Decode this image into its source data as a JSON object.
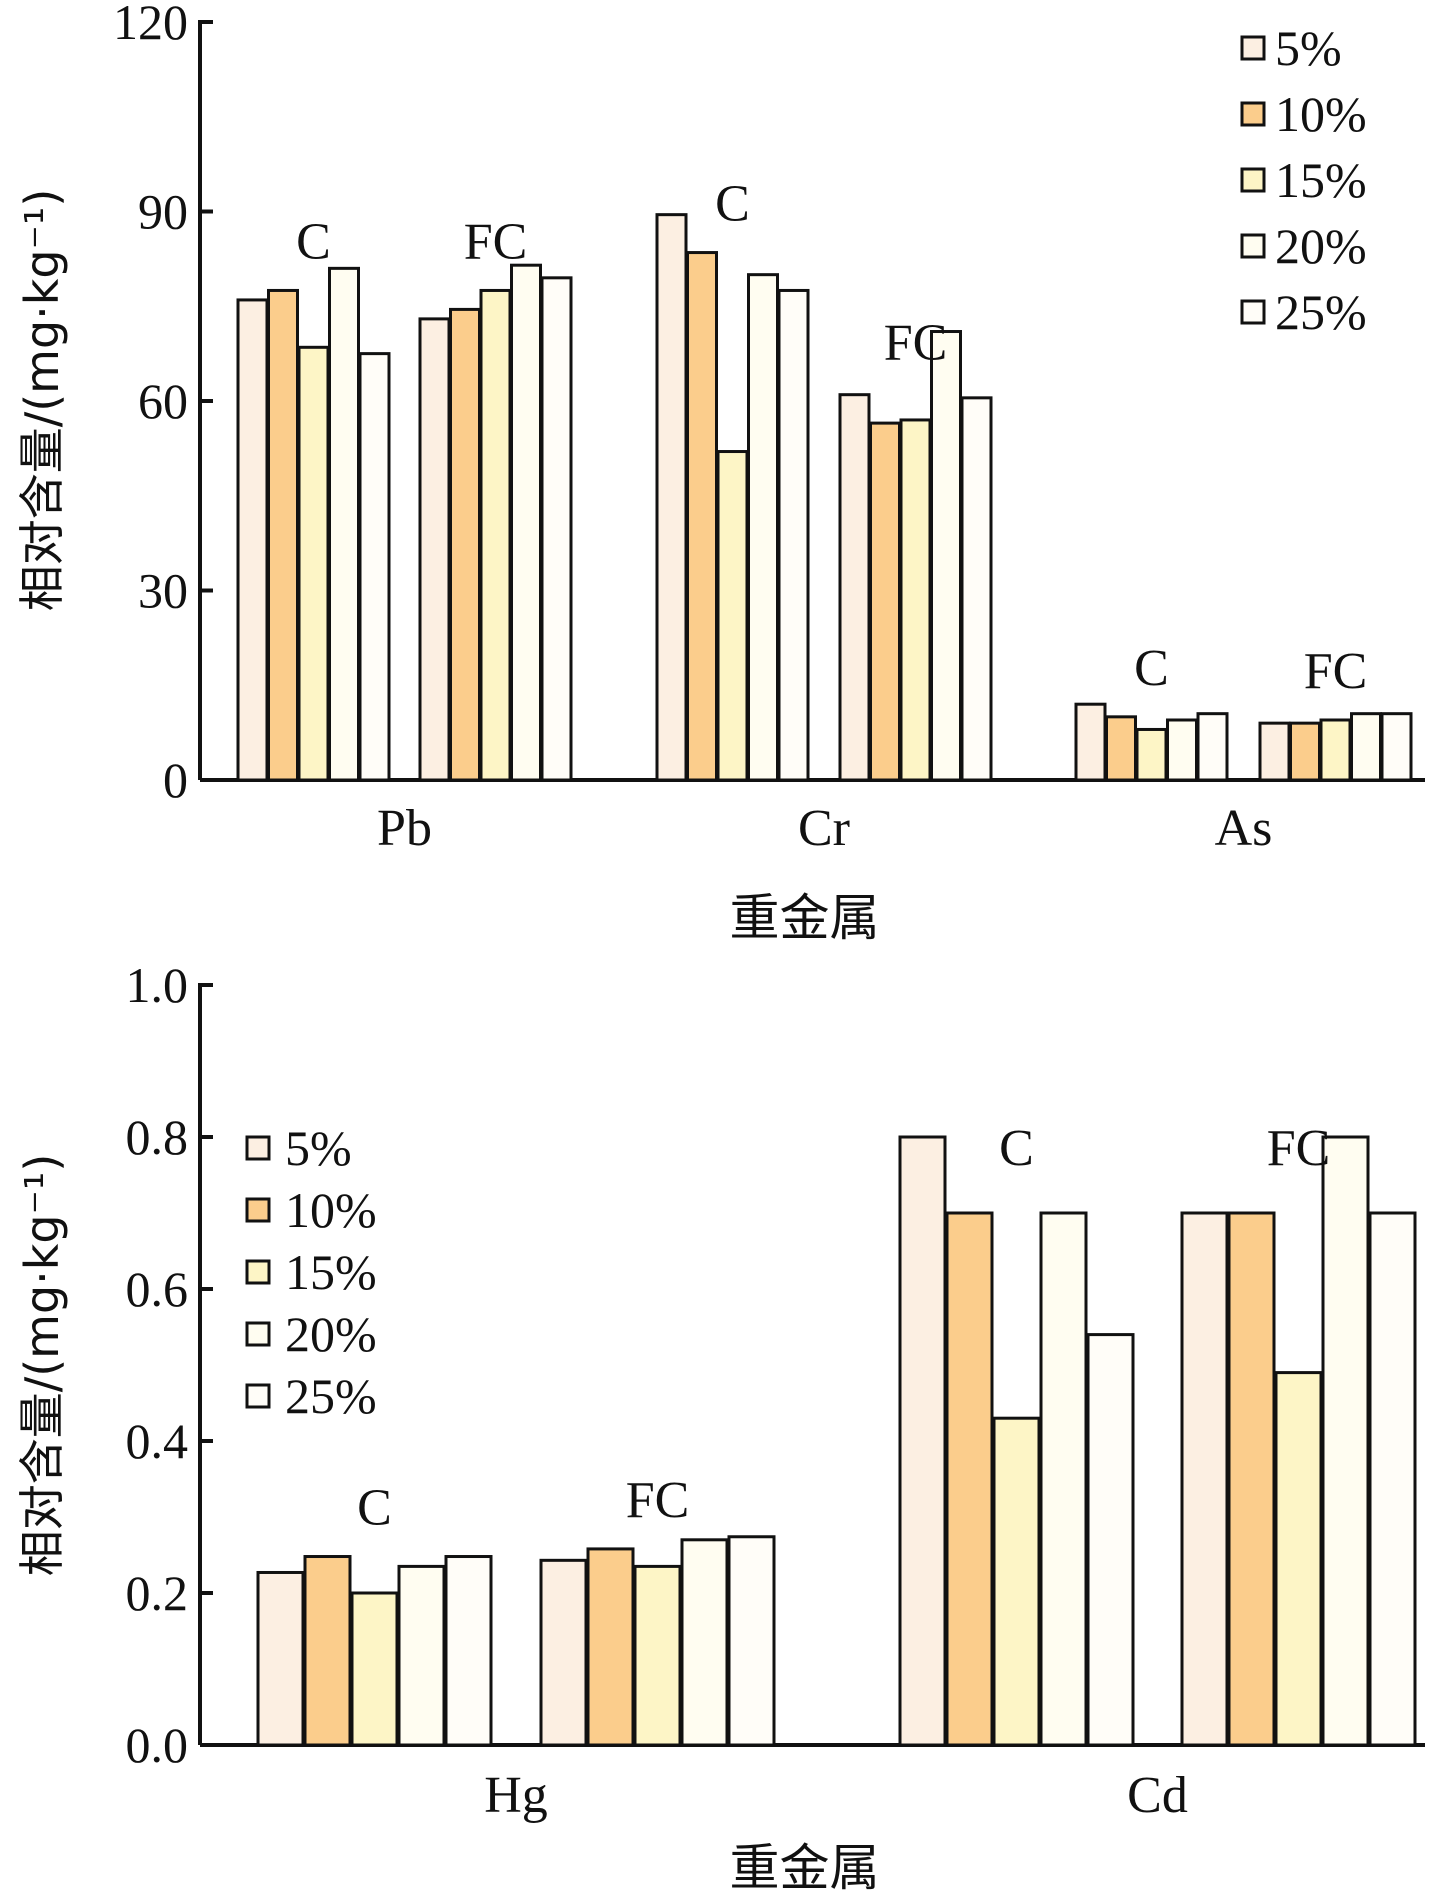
{
  "colors": {
    "series": [
      "#fcefe2",
      "#fbcd8c",
      "#fdf5c6",
      "#fffdf1",
      "#fffdf8"
    ],
    "stroke": "#111111"
  },
  "chart_data": [
    {
      "type": "bar",
      "xlabel": "重金属",
      "ylabel": "相对含量/(mg·kg⁻¹)",
      "ylim": [
        0,
        120
      ],
      "yticks": [
        "0",
        "30",
        "60",
        "90",
        "120"
      ],
      "legend_position": "top-right",
      "series_names": [
        "5%",
        "10%",
        "15%",
        "20%",
        "25%"
      ],
      "categories": [
        {
          "name": "Pb",
          "groups": [
            {
              "label": "C",
              "values": [
                76,
                77.5,
                68.5,
                81,
                67.5
              ]
            },
            {
              "label": "FC",
              "values": [
                73,
                74.5,
                77.5,
                81.5,
                79.5
              ]
            }
          ]
        },
        {
          "name": "Cr",
          "groups": [
            {
              "label": "C",
              "values": [
                89.5,
                83.5,
                52,
                80,
                77.5
              ]
            },
            {
              "label": "FC",
              "values": [
                61,
                56.5,
                57,
                71,
                60.5
              ]
            }
          ]
        },
        {
          "name": "As",
          "groups": [
            {
              "label": "C",
              "values": [
                12,
                10,
                8,
                9.5,
                10.5
              ]
            },
            {
              "label": "FC",
              "values": [
                9,
                9,
                9.5,
                10.5,
                10.5
              ]
            }
          ]
        }
      ]
    },
    {
      "type": "bar",
      "xlabel": "重金属",
      "ylabel": "相对含量/(mg·kg⁻¹)",
      "ylim": [
        0,
        1.0
      ],
      "yticks": [
        "0.0",
        "0.2",
        "0.4",
        "0.6",
        "0.8",
        "1.0"
      ],
      "legend_position": "top-left",
      "series_names": [
        "5%",
        "10%",
        "15%",
        "20%",
        "25%"
      ],
      "categories": [
        {
          "name": "Hg",
          "groups": [
            {
              "label": "C",
              "values": [
                0.227,
                0.248,
                0.2,
                0.235,
                0.248
              ]
            },
            {
              "label": "FC",
              "values": [
                0.243,
                0.258,
                0.235,
                0.27,
                0.274
              ]
            }
          ]
        },
        {
          "name": "Cd",
          "groups": [
            {
              "label": "C",
              "values": [
                0.8,
                0.7,
                0.43,
                0.7,
                0.54
              ]
            },
            {
              "label": "FC",
              "values": [
                0.7,
                0.7,
                0.49,
                0.8,
                0.7
              ]
            }
          ]
        }
      ]
    }
  ]
}
